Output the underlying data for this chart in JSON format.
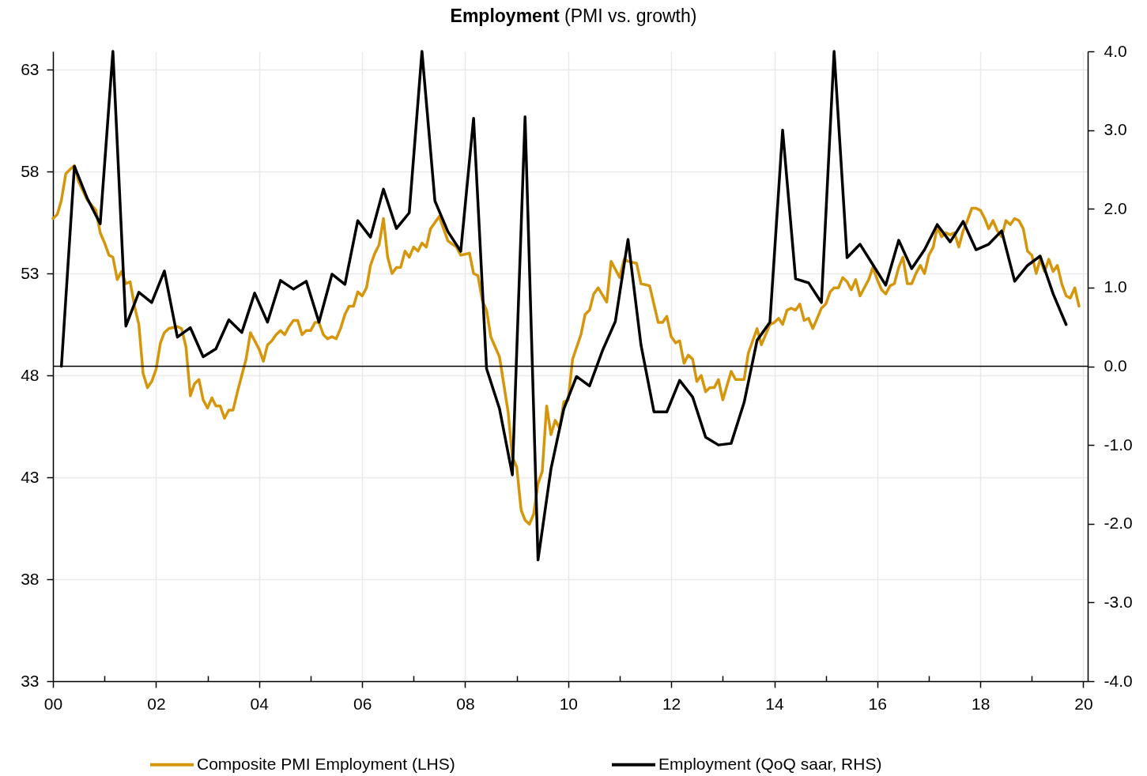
{
  "chart_data": {
    "type": "line",
    "title": "Employment",
    "subtitle": "(PMI vs. growth)",
    "xlim": [
      "2000-01",
      "2020-02"
    ],
    "xticks": [
      {
        "value": "2000",
        "label": "00"
      },
      {
        "value": "2001",
        "label": null
      },
      {
        "value": "2002",
        "label": "02"
      },
      {
        "value": "2003",
        "label": null
      },
      {
        "value": "2004",
        "label": "04"
      },
      {
        "value": "2005",
        "label": null
      },
      {
        "value": "2006",
        "label": "06"
      },
      {
        "value": "2007",
        "label": null
      },
      {
        "value": "2008",
        "label": "08"
      },
      {
        "value": "2009",
        "label": null
      },
      {
        "value": "2010",
        "label": "10"
      },
      {
        "value": "2011",
        "label": null
      },
      {
        "value": "2012",
        "label": "12"
      },
      {
        "value": "2013",
        "label": null
      },
      {
        "value": "2014",
        "label": "14"
      },
      {
        "value": "2015",
        "label": null
      },
      {
        "value": "2016",
        "label": "16"
      },
      {
        "value": "2017",
        "label": null
      },
      {
        "value": "2018",
        "label": "18"
      },
      {
        "value": "2019",
        "label": null
      },
      {
        "value": "2020",
        "label": "20"
      }
    ],
    "ylim": [
      33,
      63.9
    ],
    "yticks": [
      33,
      38,
      43,
      48,
      53,
      58,
      63
    ],
    "y2lim": [
      -4,
      4
    ],
    "y2ticks": [
      {
        "value": -4,
        "label": "-4.0"
      },
      {
        "value": -3,
        "label": "-3.0"
      },
      {
        "value": -2,
        "label": "-2.0"
      },
      {
        "value": -1,
        "label": "-1.0"
      },
      {
        "value": 0,
        "label": "0.0"
      },
      {
        "value": 1,
        "label": "1.0"
      },
      {
        "value": 2,
        "label": "2.0"
      },
      {
        "value": 3,
        "label": "3.0"
      },
      {
        "value": 4,
        "label": "4.0"
      }
    ],
    "series": [
      {
        "name": "Composite PMI Employment (LHS)",
        "color": "#d6960b",
        "x": [
          "2000-01",
          "2000-02",
          "2000-03",
          "2000-04",
          "2000-05",
          "2000-06",
          "2000-07",
          "2000-09",
          "2000-11",
          "2000-12",
          "2001-01",
          "2001-02",
          "2001-03",
          "2001-04",
          "2001-05",
          "2001-06",
          "2001-07",
          "2001-08",
          "2001-09",
          "2001-10",
          "2001-11",
          "2001-12",
          "2002-01",
          "2002-02",
          "2002-03",
          "2002-04",
          "2002-06",
          "2002-07",
          "2002-08",
          "2002-09",
          "2002-10",
          "2002-11",
          "2002-12",
          "2003-01",
          "2003-02",
          "2003-03",
          "2003-04",
          "2003-05",
          "2003-06",
          "2003-07",
          "2003-08",
          "2003-10",
          "2003-11",
          "2004-01",
          "2004-02",
          "2004-03",
          "2004-04",
          "2004-05",
          "2004-06",
          "2004-07",
          "2004-08",
          "2004-09",
          "2004-10",
          "2004-11",
          "2004-12",
          "2005-01",
          "2005-02",
          "2005-03",
          "2005-04",
          "2005-05",
          "2005-06",
          "2005-07",
          "2005-08",
          "2005-09",
          "2005-10",
          "2005-11",
          "2005-12",
          "2006-01",
          "2006-02",
          "2006-03",
          "2006-04",
          "2006-05",
          "2006-06",
          "2006-07",
          "2006-08",
          "2006-09",
          "2006-10",
          "2006-11",
          "2006-12",
          "2007-01",
          "2007-02",
          "2007-03",
          "2007-04",
          "2007-05",
          "2007-07",
          "2007-08",
          "2007-09",
          "2007-11",
          "2007-12",
          "2008-02",
          "2008-03",
          "2008-04",
          "2008-05",
          "2008-06",
          "2008-07",
          "2008-08",
          "2008-09",
          "2008-11",
          "2008-12",
          "2009-01",
          "2009-02",
          "2009-03",
          "2009-04",
          "2009-05",
          "2009-06",
          "2009-07",
          "2009-08",
          "2009-09",
          "2009-10",
          "2009-11",
          "2009-12",
          "2010-01",
          "2010-02",
          "2010-04",
          "2010-05",
          "2010-06",
          "2010-07",
          "2010-08",
          "2010-10",
          "2010-11",
          "2011-01",
          "2011-02",
          "2011-03",
          "2011-05",
          "2011-06",
          "2011-08",
          "2011-10",
          "2011-11",
          "2011-12",
          "2012-01",
          "2012-02",
          "2012-03",
          "2012-04",
          "2012-05",
          "2012-06",
          "2012-07",
          "2012-08",
          "2012-09",
          "2012-10",
          "2012-11",
          "2012-12",
          "2013-01",
          "2013-03",
          "2013-04",
          "2013-06",
          "2013-07",
          "2013-09",
          "2013-10",
          "2013-12",
          "2014-01",
          "2014-02",
          "2014-03",
          "2014-04",
          "2014-05",
          "2014-06",
          "2014-07",
          "2014-08",
          "2014-09",
          "2014-10",
          "2014-11",
          "2014-12",
          "2015-01",
          "2015-02",
          "2015-03",
          "2015-04",
          "2015-05",
          "2015-06",
          "2015-07",
          "2015-08",
          "2015-09",
          "2015-10",
          "2015-11",
          "2015-12",
          "2016-01",
          "2016-02",
          "2016-03",
          "2016-04",
          "2016-05",
          "2016-06",
          "2016-07",
          "2016-08",
          "2016-09",
          "2016-10",
          "2016-11",
          "2016-12",
          "2017-01",
          "2017-02",
          "2017-03",
          "2017-04",
          "2017-05",
          "2017-06",
          "2017-07",
          "2017-08",
          "2017-09",
          "2017-10",
          "2017-11",
          "2017-12",
          "2018-01",
          "2018-02",
          "2018-03",
          "2018-04",
          "2018-05",
          "2018-06",
          "2018-07",
          "2018-08",
          "2018-09",
          "2018-10",
          "2018-11",
          "2018-12",
          "2019-01",
          "2019-02",
          "2019-03",
          "2019-04",
          "2019-05",
          "2019-06",
          "2019-07",
          "2019-08",
          "2019-09",
          "2019-10",
          "2019-11",
          "2019-12"
        ],
        "values": [
          55.7,
          55.9,
          56.6,
          57.9,
          58.1,
          58.3,
          57.5,
          56.6,
          56.1,
          55.0,
          54.5,
          53.9,
          53.8,
          52.7,
          53.1,
          52.5,
          52.6,
          51.4,
          50.5,
          48.1,
          47.4,
          47.7,
          48.3,
          49.6,
          50.1,
          50.3,
          50.4,
          50.3,
          49.4,
          47.0,
          47.6,
          47.8,
          46.8,
          46.4,
          46.9,
          46.5,
          46.5,
          45.9,
          46.3,
          46.3,
          47.2,
          48.8,
          50.1,
          49.3,
          48.7,
          49.5,
          49.7,
          50.0,
          50.2,
          50.0,
          50.4,
          50.7,
          50.7,
          50.0,
          50.2,
          50.2,
          50.6,
          50.6,
          50.0,
          49.8,
          49.9,
          49.8,
          50.3,
          51.0,
          51.4,
          51.4,
          52.1,
          51.9,
          52.3,
          53.4,
          54.0,
          54.4,
          55.7,
          53.8,
          53.0,
          53.3,
          53.3,
          54.1,
          53.8,
          54.3,
          54.1,
          54.5,
          54.3,
          55.2,
          55.8,
          55.2,
          54.6,
          54.3,
          53.9,
          54.0,
          53.0,
          52.9,
          51.7,
          51.2,
          49.9,
          49.4,
          48.9,
          46.2,
          44.0,
          43.5,
          41.4,
          40.9,
          40.7,
          41.2,
          42.7,
          43.3,
          46.5,
          45.1,
          45.8,
          45.4,
          46.7,
          46.8,
          48.8,
          50.0,
          51.0,
          51.2,
          52.0,
          52.3,
          51.6,
          53.6,
          52.8,
          53.7,
          53.6,
          53.5,
          52.5,
          52.4,
          50.6,
          50.6,
          50.9,
          49.9,
          49.6,
          49.7,
          48.6,
          49.0,
          48.8,
          47.7,
          48.0,
          47.2,
          47.4,
          47.4,
          47.8,
          46.8,
          48.2,
          47.8,
          47.8,
          49.1,
          50.3,
          49.5,
          50.5,
          50.6,
          50.8,
          50.5,
          51.2,
          51.3,
          51.2,
          51.5,
          50.7,
          50.8,
          50.3,
          50.8,
          51.3,
          51.5,
          52.1,
          52.3,
          52.3,
          52.8,
          52.6,
          52.2,
          52.7,
          51.9,
          52.3,
          52.7,
          53.3,
          52.7,
          52.2,
          52.0,
          52.4,
          52.5,
          53.3,
          53.8,
          52.5,
          52.5,
          53.0,
          53.4,
          53.0,
          53.9,
          54.3,
          55.3,
          54.8,
          55.0,
          54.9,
          55.0,
          54.3,
          55.1,
          55.6,
          56.2,
          56.2,
          56.1,
          55.7,
          55.2,
          55.6,
          55.1,
          54.8,
          55.6,
          55.4,
          55.7,
          55.6,
          55.2,
          54.1,
          53.9,
          53.0,
          53.7,
          53.1,
          53.7,
          53.1,
          53.4,
          52.5,
          51.9,
          51.8,
          52.3,
          51.4
        ]
      },
      {
        "name": "Employment (QoQ saar, RHS)",
        "color": "#000000",
        "axis": "y2",
        "x": [
          "2000-03",
          "2000-06",
          "2000-09",
          "2000-12",
          "2001-03",
          "2001-06",
          "2001-09",
          "2001-12",
          "2002-03",
          "2002-06",
          "2002-09",
          "2002-12",
          "2003-03",
          "2003-06",
          "2003-09",
          "2003-12",
          "2004-03",
          "2004-06",
          "2004-09",
          "2004-12",
          "2005-03",
          "2005-06",
          "2005-09",
          "2005-12",
          "2006-03",
          "2006-06",
          "2006-09",
          "2006-12",
          "2007-03",
          "2007-06",
          "2007-09",
          "2007-12",
          "2008-03",
          "2008-06",
          "2008-09",
          "2008-12",
          "2009-03",
          "2009-06",
          "2009-09",
          "2009-12",
          "2010-03",
          "2010-06",
          "2010-09",
          "2010-12",
          "2011-03",
          "2011-06",
          "2011-09",
          "2011-12",
          "2012-03",
          "2012-06",
          "2012-09",
          "2012-12",
          "2013-03",
          "2013-06",
          "2013-09",
          "2013-12",
          "2014-03",
          "2014-06",
          "2014-09",
          "2014-12",
          "2015-03",
          "2015-06",
          "2015-09",
          "2015-12",
          "2016-03",
          "2016-06",
          "2016-09",
          "2016-12",
          "2017-03",
          "2017-06",
          "2017-09",
          "2017-12",
          "2018-03",
          "2018-06",
          "2018-09",
          "2018-12",
          "2019-03",
          "2019-06",
          "2019-09"
        ],
        "values": [
          0.0,
          2.54,
          2.13,
          1.81,
          4.0,
          0.51,
          0.94,
          0.81,
          1.21,
          0.37,
          0.49,
          0.12,
          0.22,
          0.59,
          0.43,
          0.93,
          0.56,
          1.09,
          0.98,
          1.08,
          0.56,
          1.17,
          1.04,
          1.85,
          1.64,
          2.25,
          1.75,
          1.95,
          4.0,
          2.1,
          1.71,
          1.46,
          3.15,
          -0.03,
          -0.54,
          -1.38,
          3.17,
          -2.46,
          -1.3,
          -0.54,
          -0.13,
          -0.25,
          0.2,
          0.57,
          1.61,
          0.27,
          -0.58,
          -0.58,
          -0.18,
          -0.39,
          -0.9,
          -1.0,
          -0.98,
          -0.46,
          0.33,
          0.56,
          3.0,
          1.11,
          1.06,
          0.81,
          4.0,
          1.38,
          1.55,
          1.29,
          1.03,
          1.6,
          1.24,
          1.48,
          1.8,
          1.58,
          1.84,
          1.48,
          1.55,
          1.72,
          1.08,
          1.28,
          1.4,
          0.92,
          0.53
        ]
      }
    ],
    "ref_lines": [
      {
        "axis": "y2",
        "value": 0,
        "color": "#000000"
      }
    ],
    "grid": true,
    "legend": "bottom"
  }
}
